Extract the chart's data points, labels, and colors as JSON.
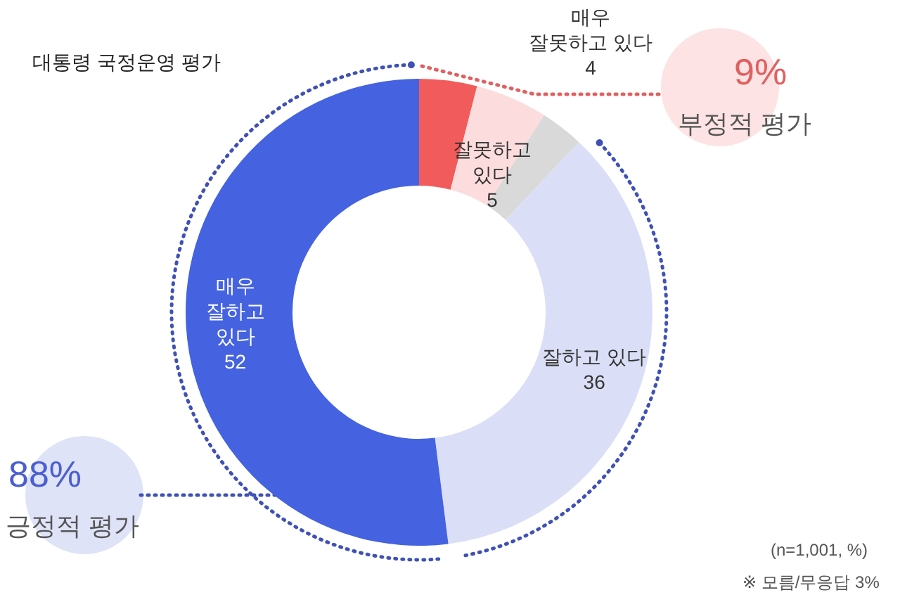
{
  "chart_data": {
    "type": "donut",
    "title": "대통령 국정운영 평가",
    "categories": [
      "매우\n잘못하고 있다",
      "잘못하고\n있다",
      null,
      "잘하고 있다",
      "매우\n잘하고\n있다"
    ],
    "values": [
      4,
      5,
      3,
      36,
      52
    ],
    "colors": [
      "#f25b5b",
      "#fcdcdc",
      "#d9d9d9",
      "#dadff7",
      "#4563e0"
    ],
    "value_labels": [
      "4",
      "5",
      null,
      "36",
      "52"
    ],
    "legend": false,
    "annotations": [
      "9%",
      "부정적 평가",
      "88%",
      "긍정적 평가",
      "(n=1,001, %)",
      "※ 모름/무응답 3%"
    ]
  }
}
